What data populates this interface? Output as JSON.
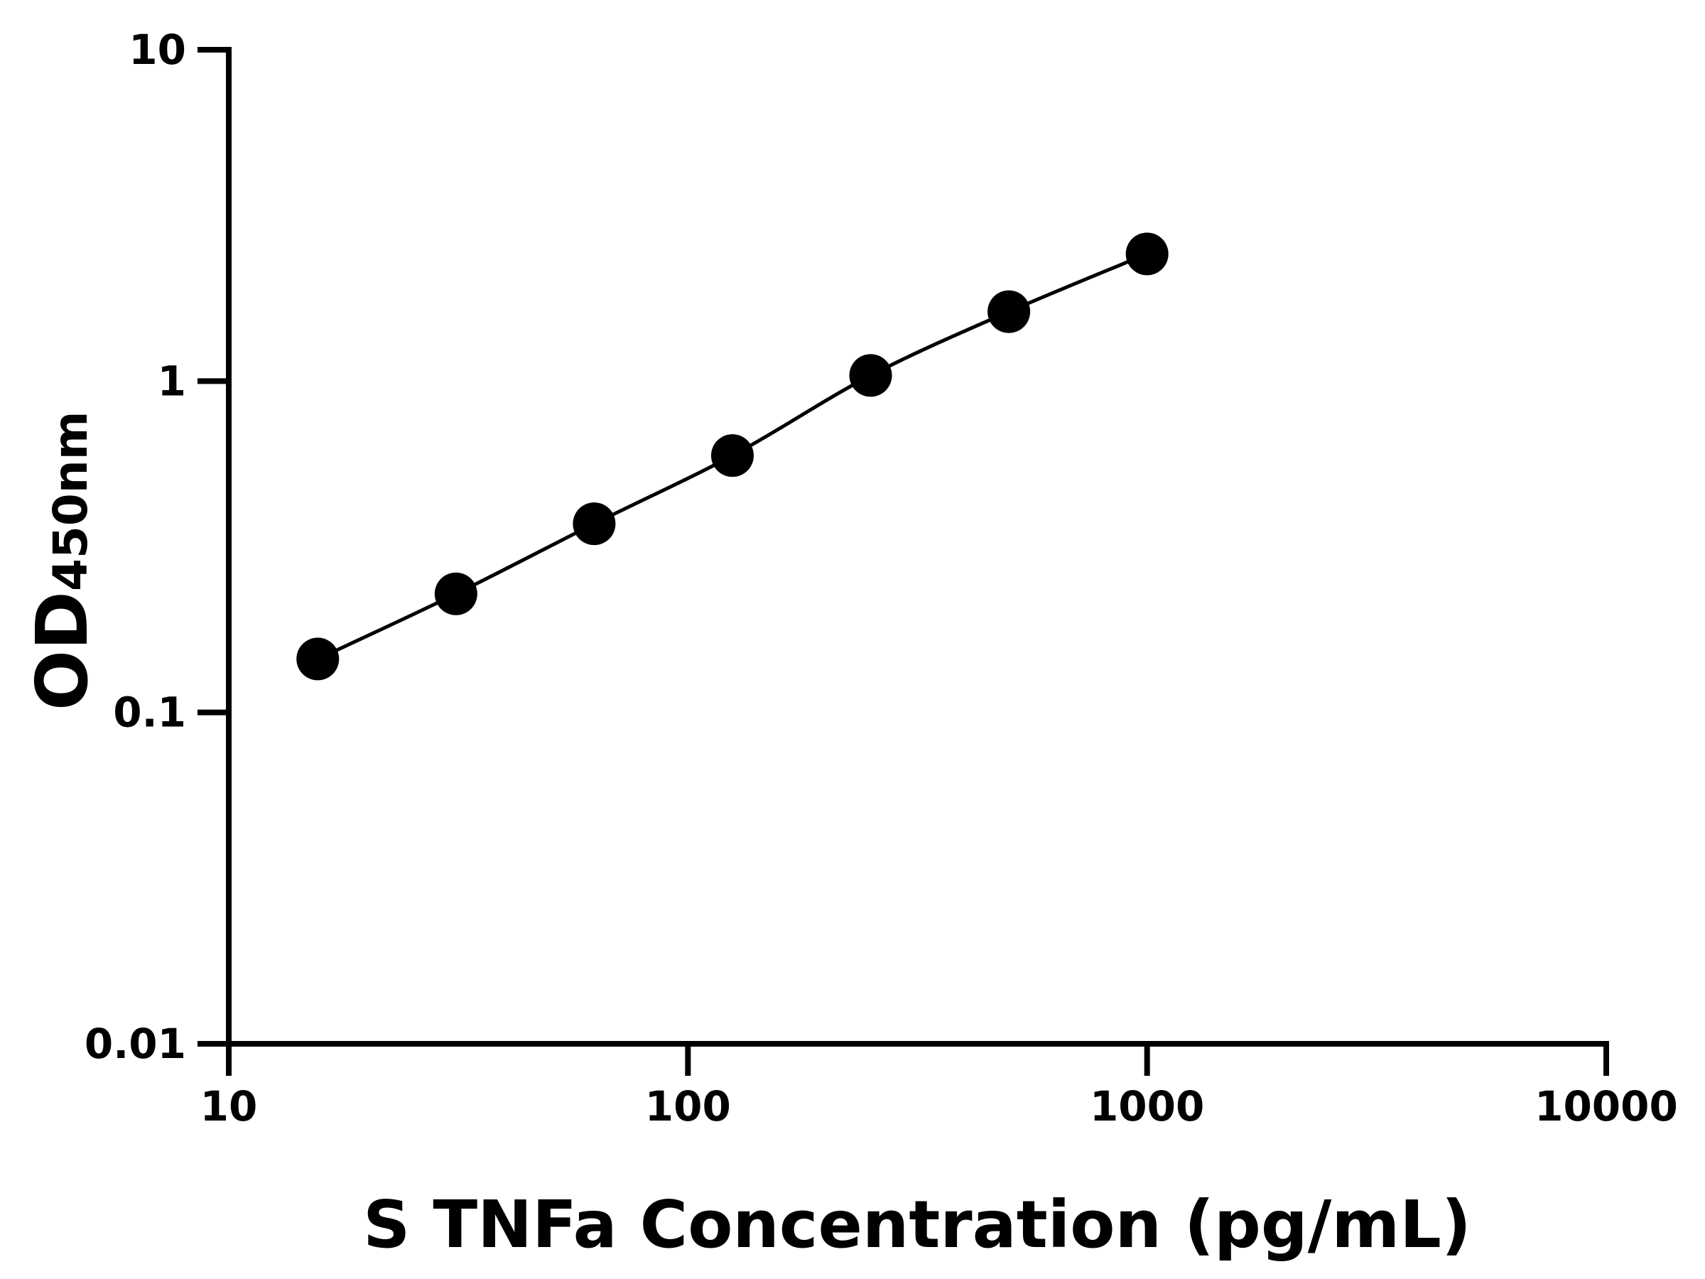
{
  "chart_data": {
    "type": "scatter",
    "xlabel": "S TNFa Concentration (pg/mL)",
    "ylabel_main": "OD",
    "ylabel_sub": "450nm",
    "xscale": "log",
    "yscale": "log",
    "xlim": [
      10,
      10000
    ],
    "ylim": [
      0.01,
      10
    ],
    "xticks": [
      "10",
      "100",
      "1000",
      "10000"
    ],
    "yticks": [
      "0.01",
      "0.1",
      "1",
      "10"
    ],
    "grid": false,
    "fit_curve": true,
    "colors": {
      "marker": "#000000",
      "line": "#000000"
    },
    "series": [
      {
        "x": [
          15.625,
          31.25,
          62.5,
          125,
          250,
          500,
          1000
        ],
        "y": [
          0.145,
          0.228,
          0.371,
          0.596,
          1.04,
          1.62,
          2.42
        ]
      }
    ]
  }
}
